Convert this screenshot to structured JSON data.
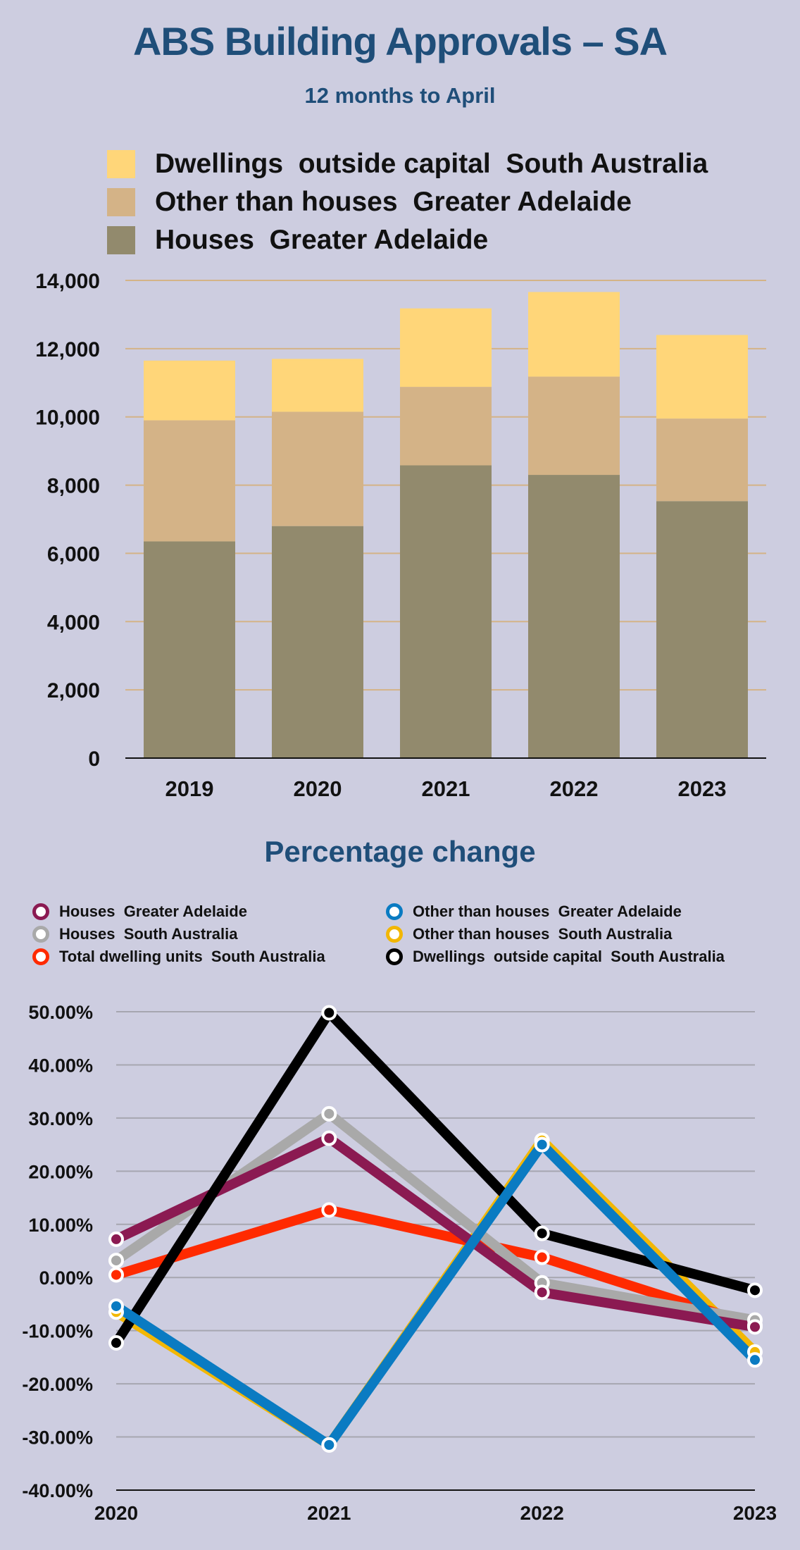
{
  "header": {
    "title": "ABS Building Approvals – SA",
    "subtitle": "12 months to April"
  },
  "chart_data": [
    {
      "type": "bar",
      "stacked": true,
      "categories": [
        "2019",
        "2020",
        "2021",
        "2022",
        "2023"
      ],
      "series": [
        {
          "name": "Houses  Greater Adelaide",
          "color": "#928a6d",
          "values": [
            6350,
            6800,
            8580,
            8300,
            7530
          ]
        },
        {
          "name": "Other than houses  Greater Adelaide",
          "color": "#d4b387",
          "values": [
            3550,
            3350,
            2300,
            2880,
            2420
          ]
        },
        {
          "name": "Dwellings  outside capital  South Australia",
          "color": "#ffd679",
          "values": [
            1750,
            1550,
            2300,
            2480,
            2450
          ]
        }
      ],
      "legend_order": [
        2,
        1,
        0
      ],
      "yticks": [
        "0",
        "2,000",
        "4,000",
        "6,000",
        "8,000",
        "10,000",
        "12,000",
        "14,000"
      ],
      "ylim": [
        0,
        14000
      ],
      "grid": true
    },
    {
      "type": "line",
      "title": "Percentage change",
      "x": [
        "2020",
        "2021",
        "2022",
        "2023"
      ],
      "series": [
        {
          "name": "Other than houses  South Australia",
          "color": "#f2b705",
          "values": [
            -6.5,
            -31.5,
            25.8,
            -14.0
          ]
        },
        {
          "name": "Total dwelling units  South Australia",
          "color": "#ff2a00",
          "values": [
            0.5,
            12.7,
            3.8,
            -9.0
          ]
        },
        {
          "name": "Houses  South Australia",
          "color": "#a9a9a9",
          "values": [
            3.2,
            30.8,
            -1.0,
            -8.0
          ]
        },
        {
          "name": "Houses  Greater Adelaide",
          "color": "#8b1a52",
          "values": [
            7.2,
            26.2,
            -2.8,
            -9.3
          ]
        },
        {
          "name": "Dwellings  outside capital  South Australia",
          "color": "#000000",
          "values": [
            -12.3,
            49.8,
            8.3,
            -2.4
          ]
        },
        {
          "name": "Other than houses  Greater Adelaide",
          "color": "#0a7bc2",
          "values": [
            -5.4,
            -31.5,
            25.0,
            -15.5
          ]
        }
      ],
      "legend_order": [
        3,
        5,
        2,
        0,
        1,
        4
      ],
      "yticks": [
        "-40.00%",
        "-30.00%",
        "-20.00%",
        "-10.00%",
        "0.00%",
        "10.00%",
        "20.00%",
        "30.00%",
        "40.00%",
        "50.00%"
      ],
      "ylim": [
        -40,
        50
      ],
      "grid": true
    }
  ]
}
